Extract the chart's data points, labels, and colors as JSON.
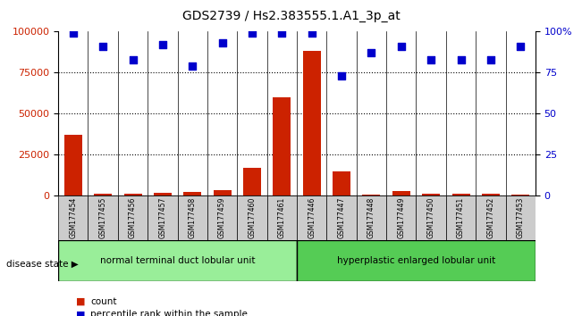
{
  "title": "GDS2739 / Hs2.383555.1.A1_3p_at",
  "samples": [
    "GSM177454",
    "GSM177455",
    "GSM177456",
    "GSM177457",
    "GSM177458",
    "GSM177459",
    "GSM177460",
    "GSM177461",
    "GSM177446",
    "GSM177447",
    "GSM177448",
    "GSM177449",
    "GSM177450",
    "GSM177451",
    "GSM177452",
    "GSM177453"
  ],
  "counts": [
    37000,
    1200,
    1500,
    1800,
    2200,
    3500,
    17000,
    60000,
    88000,
    15000,
    800,
    3000,
    1500,
    1200,
    1200,
    1000
  ],
  "percentiles": [
    99,
    91,
    83,
    92,
    79,
    93,
    99,
    99,
    99,
    73,
    87,
    91,
    83,
    83,
    83,
    91
  ],
  "group1_label": "normal terminal duct lobular unit",
  "group2_label": "hyperplastic enlarged lobular unit",
  "group1_count": 8,
  "group2_count": 8,
  "disease_state_label": "disease state",
  "legend_count_label": "count",
  "legend_pct_label": "percentile rank within the sample",
  "bar_color": "#cc2200",
  "scatter_color": "#0000cc",
  "group1_color": "#99ee99",
  "group2_color": "#55cc55",
  "bg_color": "#cccccc",
  "ylim_left": [
    0,
    100000
  ],
  "ylim_right": [
    0,
    100
  ],
  "yticks_left": [
    0,
    25000,
    50000,
    75000,
    100000
  ],
  "yticks_right": [
    0,
    25,
    50,
    75,
    100
  ],
  "grid_style": "dotted"
}
